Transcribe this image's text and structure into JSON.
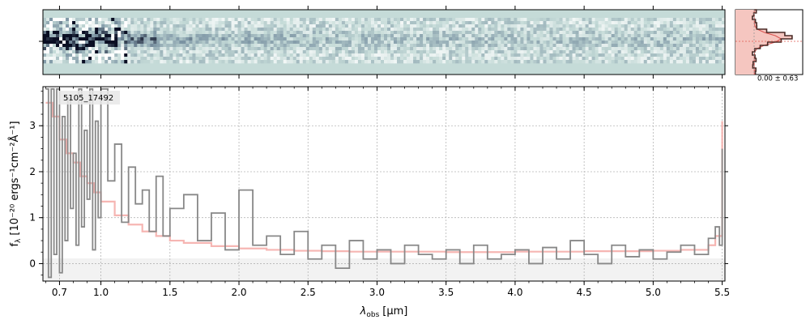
{
  "chart_data": [
    {
      "panel": "2d-spectrum",
      "type": "heatmap",
      "title": "",
      "colormap": [
        "#ffffff",
        "#c5dbd8",
        "#7f97a6",
        "#0b0f24"
      ],
      "background_color": "#c5dbd8",
      "description_values": {
        "trace_strength_by_x": [
          1.0,
          0.85,
          0.6,
          0.35,
          0.3,
          0.28,
          0.25,
          0.22,
          0.2,
          0.18,
          0.17,
          0.16,
          0.15,
          0.15,
          0.16,
          0.17,
          0.2,
          0.25
        ]
      }
    },
    {
      "panel": "profile",
      "type": "line",
      "annotation": "0.00 ± 0.63",
      "fill_color": "#f5c6c0",
      "line_color": "#4a2a26",
      "model_color": "#d9534f"
    },
    {
      "panel": "1d-spectrum",
      "type": "line",
      "label": "5105_17492",
      "xlabel_main": "λ",
      "xlabel_sub": "obs",
      "xlabel_unit": "[μm]",
      "ylabel_main": "f",
      "ylabel_sub": "λ",
      "ylabel_unit": "[10⁻²⁰ ergs⁻¹cm⁻²Å⁻¹]",
      "x_ticks": [
        0.7,
        1.0,
        1.5,
        2.0,
        2.5,
        3.0,
        3.5,
        4.0,
        4.5,
        5.0,
        5.5
      ],
      "x_tick_labels": [
        "0.7",
        "1.0",
        "1.5",
        "2.0",
        "2.5",
        "3.0",
        "3.5",
        "4.0",
        "4.5",
        "5.0",
        "5.5"
      ],
      "x_grid_values": [
        0.7,
        1.0,
        1.5,
        2.0,
        2.5,
        3.0,
        3.5,
        4.0,
        4.5,
        5.0,
        5.5
      ],
      "y_ticks": [
        0,
        1,
        2,
        3
      ],
      "y_tick_labels": [
        "0",
        "1",
        "2",
        "3"
      ],
      "ylim": [
        -0.38,
        3.85
      ],
      "xlim": [
        0.58,
        5.52
      ],
      "grid": true,
      "series": [
        {
          "color": "#888888",
          "style": "step",
          "x": [
            0.6,
            0.62,
            0.64,
            0.66,
            0.68,
            0.7,
            0.72,
            0.74,
            0.76,
            0.78,
            0.8,
            0.82,
            0.84,
            0.86,
            0.88,
            0.9,
            0.92,
            0.94,
            0.96,
            0.98,
            1.0,
            1.05,
            1.1,
            1.15,
            1.2,
            1.25,
            1.3,
            1.35,
            1.4,
            1.45,
            1.5,
            1.6,
            1.7,
            1.8,
            1.9,
            2.0,
            2.1,
            2.2,
            2.3,
            2.4,
            2.5,
            2.6,
            2.7,
            2.8,
            2.9,
            3.0,
            3.1,
            3.2,
            3.3,
            3.4,
            3.5,
            3.6,
            3.7,
            3.8,
            3.9,
            4.0,
            4.1,
            4.2,
            4.3,
            4.4,
            4.5,
            4.6,
            4.7,
            4.8,
            4.9,
            5.0,
            5.1,
            5.2,
            5.3,
            5.4,
            5.45,
            5.48,
            5.5
          ],
          "values": [
            3.8,
            -0.3,
            3.8,
            0.2,
            3.8,
            -0.2,
            3.2,
            0.5,
            3.6,
            1.2,
            2.4,
            0.4,
            3.8,
            0.8,
            2.9,
            1.4,
            3.8,
            0.3,
            3.1,
            1.0,
            3.8,
            1.8,
            2.6,
            0.9,
            2.1,
            1.3,
            1.6,
            0.7,
            1.9,
            0.6,
            1.2,
            1.5,
            0.5,
            1.1,
            0.3,
            1.6,
            0.4,
            0.6,
            0.2,
            0.7,
            0.1,
            0.4,
            -0.1,
            0.5,
            0.1,
            0.3,
            0.0,
            0.4,
            0.2,
            0.1,
            0.3,
            0.0,
            0.4,
            0.1,
            0.2,
            0.3,
            0.0,
            0.35,
            0.1,
            0.5,
            0.2,
            0.0,
            0.4,
            0.15,
            0.3,
            0.1,
            0.25,
            0.4,
            0.2,
            0.55,
            0.8,
            0.4,
            2.5
          ]
        },
        {
          "color": "#f4a9a6",
          "style": "step",
          "x": [
            0.6,
            0.65,
            0.7,
            0.75,
            0.8,
            0.85,
            0.9,
            0.95,
            1.0,
            1.1,
            1.2,
            1.3,
            1.4,
            1.5,
            1.6,
            1.8,
            2.0,
            2.2,
            2.4,
            2.6,
            2.8,
            3.0,
            3.5,
            4.0,
            4.5,
            5.0,
            5.2,
            5.4,
            5.45,
            5.5
          ],
          "values": [
            3.5,
            3.2,
            2.7,
            2.4,
            2.2,
            1.9,
            1.75,
            1.55,
            1.35,
            1.05,
            0.85,
            0.7,
            0.6,
            0.5,
            0.45,
            0.38,
            0.33,
            0.3,
            0.28,
            0.27,
            0.26,
            0.26,
            0.25,
            0.26,
            0.27,
            0.28,
            0.3,
            0.4,
            0.6,
            3.1
          ]
        }
      ]
    }
  ]
}
